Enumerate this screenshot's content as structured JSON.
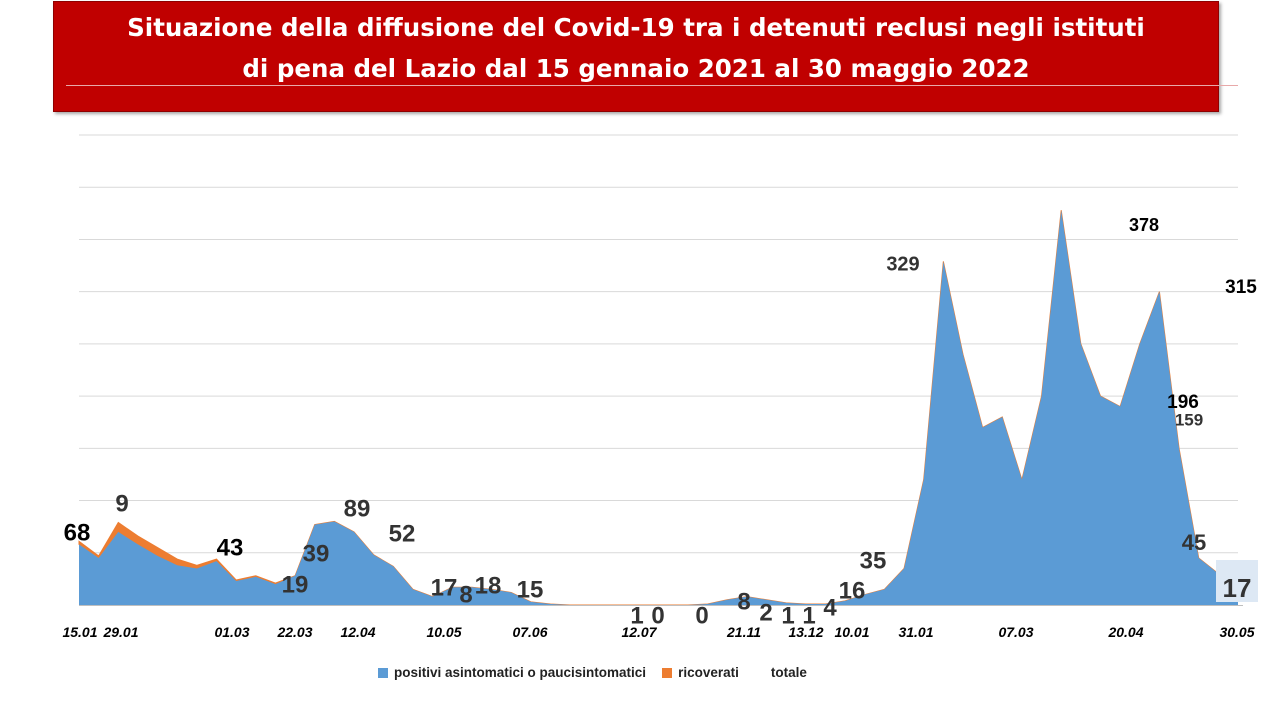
{
  "title": {
    "line1": "Situazione della diffusione del Covid-19 tra i detenuti reclusi negli istituti",
    "line2": "di pena del Lazio dal 15 gennaio 2021 al 30 maggio 2022"
  },
  "colors": {
    "title_bg": "#c00000",
    "asintomatici": "#5b9bd5",
    "ricoverati": "#ed7d31",
    "grid": "#d9d9d9"
  },
  "chart_data": {
    "type": "area",
    "stacked": true,
    "ylim": [
      0,
      450
    ],
    "grid": true,
    "legend_position": "bottom",
    "x_tick_labels": [
      "15.01",
      "29.01",
      "01.03",
      "22.03",
      "12.04",
      "10.05",
      "07.06",
      "12.07",
      "21.11",
      "13.12",
      "10.01",
      "31.01",
      "07.03",
      "20.04",
      "30.05"
    ],
    "series": [
      {
        "name": "positivi asintomatici o paucisintomatici",
        "values": [
          58,
          45,
          70,
          58,
          47,
          38,
          35,
          42,
          23,
          27,
          20,
          28,
          77,
          80,
          70,
          48,
          37,
          15,
          8,
          17,
          17,
          15,
          12,
          3,
          1,
          0,
          0,
          0,
          0,
          0,
          0,
          0,
          1,
          5,
          8,
          5,
          2,
          1,
          1,
          4,
          10,
          15,
          35,
          120,
          329,
          240,
          170,
          180,
          120,
          200,
          378,
          250,
          200,
          190,
          250,
          300,
          150,
          45,
          30,
          17
        ]
      },
      {
        "name": "ricoverati",
        "values": [
          3,
          2,
          9,
          8,
          8,
          6,
          3,
          2,
          1,
          1,
          1,
          0,
          0,
          0,
          0,
          0,
          0,
          0,
          0,
          0,
          0,
          0,
          0,
          0,
          0,
          0,
          0,
          0,
          0,
          0,
          0,
          0,
          0,
          0,
          0,
          0,
          0,
          0,
          0,
          0,
          0,
          0,
          0,
          0,
          0,
          0,
          0,
          0,
          0,
          0,
          0,
          0,
          0,
          0,
          0,
          0,
          0,
          0,
          0,
          0
        ]
      },
      {
        "name": "totale",
        "values": []
      }
    ],
    "data_labels": [
      {
        "text": "68",
        "x": 0,
        "y": 68,
        "size": 24,
        "color": "#000000"
      },
      {
        "text": "9",
        "x": 2,
        "y": 85,
        "size": 24,
        "color": "#333333"
      },
      {
        "text": "43",
        "x": 7,
        "y": 43,
        "size": 24,
        "color": "#000000"
      },
      {
        "text": "19",
        "x": 10.2,
        "y": 19,
        "size": 24,
        "color": "#333333"
      },
      {
        "text": "39",
        "x": 11.2,
        "y": 39,
        "size": 24,
        "color": "#333333"
      },
      {
        "text": "89",
        "x": 13,
        "y": 89,
        "size": 24,
        "color": "#333333"
      },
      {
        "text": "52",
        "x": 15.5,
        "y": 52,
        "size": 24,
        "color": "#333333"
      },
      {
        "text": "17",
        "x": 17,
        "y": 17,
        "size": 24,
        "color": "#333333"
      },
      {
        "text": "8",
        "x": 17.7,
        "y": 8,
        "size": 24,
        "color": "#333333"
      },
      {
        "text": "18",
        "x": 19,
        "y": 18,
        "size": 24,
        "color": "#333333"
      },
      {
        "text": "15",
        "x": 21.7,
        "y": 15,
        "size": 24,
        "color": "#333333"
      },
      {
        "text": "1",
        "x": 26.8,
        "y": 1,
        "size": 24,
        "color": "#333333"
      },
      {
        "text": "0",
        "x": 27.6,
        "y": 0,
        "size": 24,
        "color": "#333333"
      },
      {
        "text": "0",
        "x": 30.4,
        "y": 0,
        "size": 24,
        "color": "#333333"
      },
      {
        "text": "8",
        "x": 32.6,
        "y": 8,
        "size": 24,
        "color": "#333333"
      },
      {
        "text": "2",
        "x": 33.6,
        "y": 2,
        "size": 24,
        "color": "#333333"
      },
      {
        "text": "1",
        "x": 34.6,
        "y": 1,
        "size": 24,
        "color": "#333333"
      },
      {
        "text": "1",
        "x": 35.5,
        "y": 1,
        "size": 24,
        "color": "#333333"
      },
      {
        "text": "4",
        "x": 36.4,
        "y": 4,
        "size": 24,
        "color": "#333333"
      },
      {
        "text": "16",
        "x": 37.4,
        "y": 16,
        "size": 24,
        "color": "#333333"
      },
      {
        "text": "35",
        "x": 38.3,
        "y": 35,
        "size": 24,
        "color": "#333333"
      },
      {
        "text": "329",
        "x": 40.5,
        "y": 329,
        "size": 20,
        "color": "#333333"
      },
      {
        "text": "378",
        "x": 47.5,
        "y": 378,
        "size": 18,
        "color": "#000000"
      },
      {
        "text": "315",
        "x": 51.5,
        "y": 315,
        "size": 19,
        "color": "#000000"
      },
      {
        "text": "196",
        "x": 49.9,
        "y": 196,
        "size": 19,
        "color": "#000000"
      },
      {
        "text": "159",
        "x": 50.3,
        "y": 159,
        "size": 17,
        "color": "#333333"
      },
      {
        "text": "45",
        "x": 50.3,
        "y": 45,
        "size": 22,
        "color": "#333333"
      },
      {
        "text": "17",
        "x": 52.0,
        "y": 17,
        "size": 26,
        "color": "#333333"
      }
    ]
  },
  "legend": {
    "items": [
      {
        "label": "positivi asintomatici o paucisintomatici",
        "color": "#5b9bd5"
      },
      {
        "label": "ricoverati",
        "color": "#ed7d31"
      },
      {
        "label": "totale",
        "color": ""
      }
    ]
  }
}
